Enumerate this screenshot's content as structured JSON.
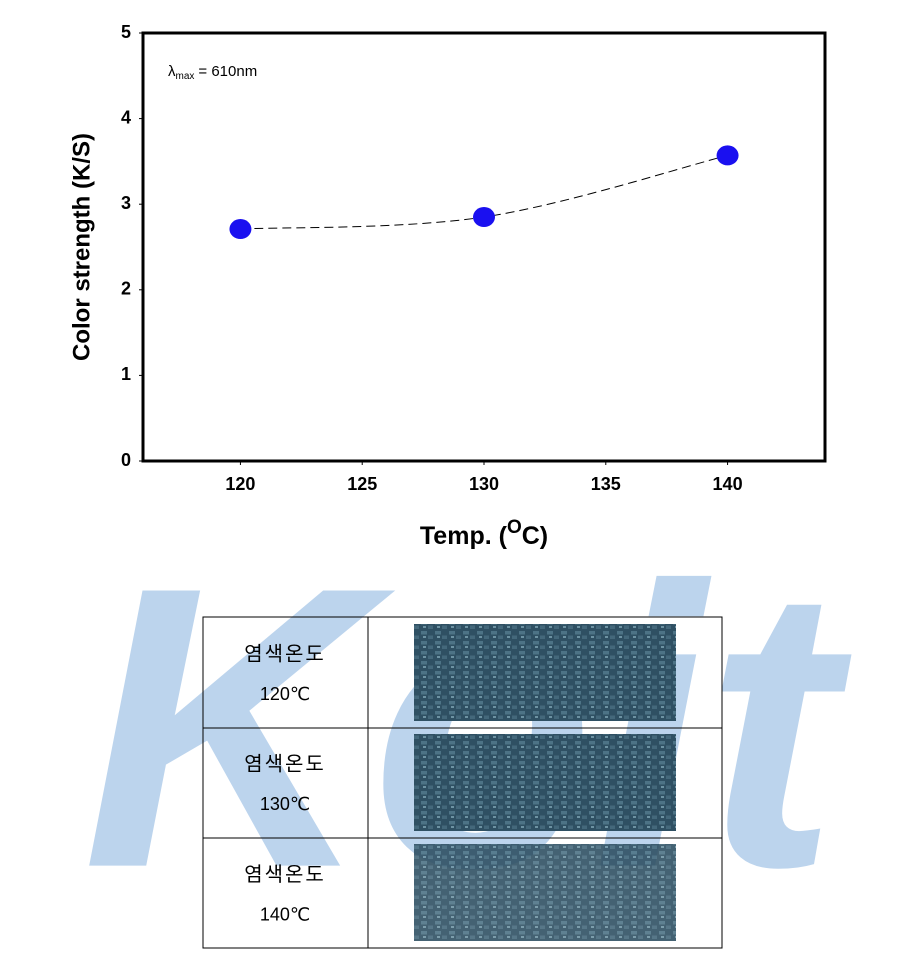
{
  "chart_data": {
    "type": "scatter",
    "annotation": {
      "symbol": "λ",
      "subscript": "max",
      "text": "= 610nm"
    },
    "ylabel": "Color strength (K/S)",
    "xlabel": {
      "before": "Temp. (",
      "sup": "O",
      "after": "C)"
    },
    "x": [
      120,
      130,
      140
    ],
    "values": [
      2.71,
      2.85,
      3.57
    ],
    "color": "#1a10f0",
    "xlim": [
      116,
      144
    ],
    "xticks": [
      120,
      125,
      130,
      135,
      140
    ],
    "ylim": [
      0,
      5
    ],
    "yticks": [
      0,
      1,
      2,
      3,
      4,
      5
    ],
    "line_style": "dashed"
  },
  "watermark": "Keit",
  "table": {
    "rows": [
      [
        "염색온도",
        "120℃"
      ],
      [
        "염색온도",
        "130℃"
      ],
      [
        "염색온도",
        "140℃"
      ]
    ]
  }
}
